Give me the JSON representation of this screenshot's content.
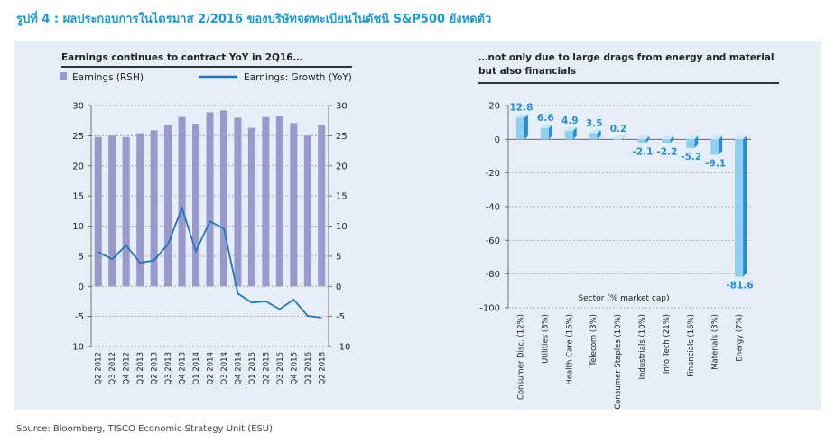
{
  "figure_title": "รูปที่ 4 : ผลประกอบการในไตรมาส 2/2016 ของบริษัทจดทะเบียนในดัชนี S&P500 ยังหดตัว",
  "source": "Source: Bloomberg, TISCO Economic Strategy Unit (ESU)",
  "colors": {
    "bar": "#9999cc",
    "line": "#1f77c4",
    "sector_bar": "#1f8fd6",
    "sector_bar_light": "#8fd0f0",
    "title": "#1a9ad6"
  },
  "chart_data": [
    {
      "type": "bar",
      "title": "Earnings continues to contract YoY in 2Q16…",
      "legend": [
        "Earnings (RSH)",
        "Earnings: Growth (YoY)"
      ],
      "categories": [
        "Q2 2012",
        "Q3 2012",
        "Q4 2012",
        "Q1 2013",
        "Q2 2013",
        "Q3 2013",
        "Q4 2013",
        "Q1 2014",
        "Q2 2014",
        "Q3 2014",
        "Q4 2014",
        "Q1 2015",
        "Q2 2015",
        "Q3 2015",
        "Q4 2015",
        "Q1 2016",
        "Q2 2016"
      ],
      "series": [
        {
          "name": "Earnings (RSH)",
          "type": "bar",
          "values": [
            24.8,
            25.0,
            24.8,
            25.4,
            25.9,
            26.8,
            28.1,
            27.0,
            28.9,
            29.2,
            28.0,
            26.3,
            28.1,
            28.2,
            27.1,
            25.0,
            26.7
          ]
        },
        {
          "name": "Earnings: Growth (YoY)",
          "type": "line",
          "values": [
            5.7,
            4.5,
            6.8,
            3.9,
            4.3,
            7.0,
            13.0,
            5.8,
            10.8,
            9.6,
            -1.2,
            -2.7,
            -2.5,
            -3.8,
            -2.2,
            -4.9,
            -5.2
          ]
        }
      ],
      "yticks": [
        "30",
        "25",
        "20",
        "15",
        "10",
        "5",
        "0",
        "-5",
        "-10"
      ],
      "ylim": [
        -10,
        30
      ],
      "legend_position": "top"
    },
    {
      "type": "bar",
      "title": "…not only due to large drags from energy and material but also financials",
      "xlabel": "Sector (% market cap)",
      "categories": [
        "Consumer Disc. (12%)",
        "Utilities (3%)",
        "Health Care (15%)",
        "Telecom (3%)",
        "Consumer Staples (10%)",
        "Industrials (10%)",
        "Info Tech (21%)",
        "Financials (16%)",
        "Materials (3%)",
        "Energy (7%)"
      ],
      "values": [
        12.8,
        6.6,
        4.9,
        3.5,
        0.2,
        -2.1,
        -2.2,
        -5.2,
        -9.1,
        -81.6
      ],
      "labels": [
        "12.8",
        "6.6",
        "4.9",
        "3.5",
        "0.2",
        "-2.1",
        "-2.2",
        "-5.2",
        "-9.1",
        "-81.6"
      ],
      "yticks": [
        "20",
        "0",
        "-20",
        "-40",
        "-60",
        "-80",
        "-100"
      ],
      "ylim": [
        -100,
        20
      ]
    }
  ]
}
